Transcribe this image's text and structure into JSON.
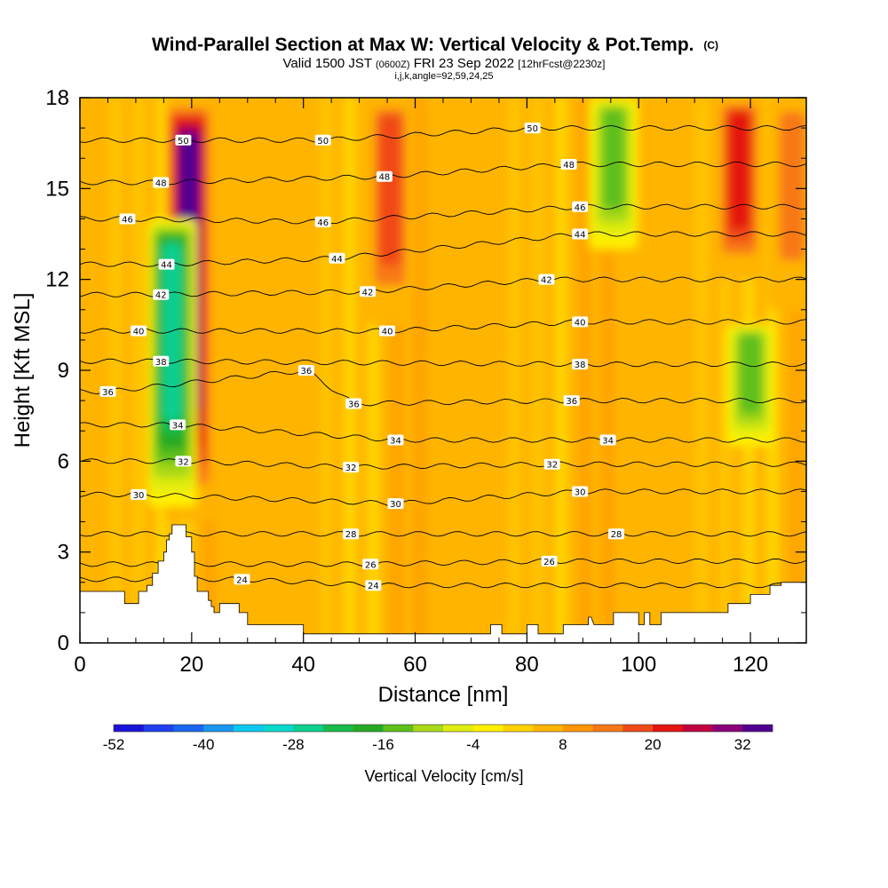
{
  "chart_data": {
    "type": "heatmap",
    "title": {
      "main": "Wind-Parallel Section at Max W: Vertical Velocity & Pot.Temp.",
      "copyright": "(C)"
    },
    "subtitle": {
      "valid": "Valid 1500 JST",
      "zulu": "(0600Z)",
      "date": "FRI 23 Sep 2022",
      "fcst": "[12hrFcst@2230z]"
    },
    "params": "i,j,k,angle=92,59,24,25",
    "xlabel": "Distance [nm]",
    "ylabel": "Height [Kft MSL]",
    "xlim": [
      0,
      130
    ],
    "ylim": [
      0,
      18
    ],
    "x_ticks": [
      0,
      20,
      40,
      60,
      80,
      100,
      120
    ],
    "y_ticks": [
      0,
      3,
      6,
      9,
      12,
      15,
      18
    ],
    "colorbar": {
      "label": "Vertical Velocity [cm/s]",
      "range": [
        -52,
        36
      ],
      "tick_labels": [
        "-52",
        "-40",
        "-28",
        "-16",
        "-4",
        "8",
        "20",
        "32"
      ],
      "colors": [
        "#1a13d8",
        "#1f3ff0",
        "#1b66f0",
        "#1a96f0",
        "#0cc8f0",
        "#0ad8cc",
        "#0ccf90",
        "#18bb4a",
        "#26aa24",
        "#5fbf1a",
        "#a8d818",
        "#e0ec10",
        "#fff000",
        "#ffd200",
        "#ffb400",
        "#ff9600",
        "#f87818",
        "#f04a18",
        "#e41410",
        "#c00040",
        "#8a0078",
        "#500090"
      ]
    },
    "velocity_features": [
      {
        "kind": "updraft",
        "x": 19.5,
        "y_range": [
          4.0,
          18.0
        ],
        "peak_cm_s": 32
      },
      {
        "kind": "updraft",
        "x": 55.5,
        "y_range": [
          10.5,
          18.0
        ],
        "peak_cm_s": 18
      },
      {
        "kind": "updraft",
        "x": 118.0,
        "y_range": [
          12.0,
          18.0
        ],
        "peak_cm_s": 22
      },
      {
        "kind": "updraft",
        "x": 127.5,
        "y_range": [
          11.0,
          18.0
        ],
        "peak_cm_s": 14
      },
      {
        "kind": "downdraft",
        "x": 16.5,
        "y_range": [
          4.5,
          14.0
        ],
        "peak_cm_s": -30
      },
      {
        "kind": "downdraft",
        "x": 95.5,
        "y_range": [
          13.0,
          18.0
        ],
        "peak_cm_s": -16
      },
      {
        "kind": "downdraft",
        "x": 120.0,
        "y_range": [
          6.5,
          10.5
        ],
        "peak_cm_s": -18
      }
    ],
    "theta_contours": [
      {
        "label": "24",
        "label_positions": [
          [
            29,
            2.1
          ],
          [
            52.5,
            1.9
          ]
        ]
      },
      {
        "label": "26",
        "label_positions": [
          [
            52,
            2.6
          ],
          [
            84,
            2.7
          ]
        ]
      },
      {
        "label": "28",
        "label_positions": [
          [
            48.5,
            3.6
          ],
          [
            96,
            3.6
          ]
        ]
      },
      {
        "label": "30",
        "label_positions": [
          [
            10.5,
            4.9
          ],
          [
            56.5,
            4.6
          ],
          [
            89.5,
            5.0
          ]
        ]
      },
      {
        "label": "32",
        "label_positions": [
          [
            18.5,
            6.0
          ],
          [
            48.5,
            5.8
          ],
          [
            84.5,
            5.9
          ]
        ]
      },
      {
        "label": "34",
        "label_positions": [
          [
            17.5,
            7.2
          ],
          [
            56.5,
            6.7
          ],
          [
            94.5,
            6.7
          ]
        ]
      },
      {
        "label": "36",
        "label_positions": [
          [
            5,
            8.3
          ],
          [
            40.5,
            9.0
          ],
          [
            49,
            7.9
          ],
          [
            88,
            8.0
          ]
        ]
      },
      {
        "label": "38",
        "label_positions": [
          [
            14.5,
            9.3
          ],
          [
            89.5,
            9.2
          ]
        ]
      },
      {
        "label": "40",
        "label_positions": [
          [
            10.5,
            10.3
          ],
          [
            55,
            10.3
          ],
          [
            89.5,
            10.6
          ]
        ]
      },
      {
        "label": "42",
        "label_positions": [
          [
            14.5,
            11.5
          ],
          [
            51.5,
            11.6
          ],
          [
            83.5,
            12.0
          ]
        ]
      },
      {
        "label": "44",
        "label_positions": [
          [
            15.5,
            12.5
          ],
          [
            46,
            12.7
          ],
          [
            89.5,
            13.5
          ]
        ]
      },
      {
        "label": "46",
        "label_positions": [
          [
            8.5,
            14.0
          ],
          [
            43.5,
            13.9
          ],
          [
            89.5,
            14.4
          ]
        ]
      },
      {
        "label": "48",
        "label_positions": [
          [
            14.5,
            15.2
          ],
          [
            54.5,
            15.4
          ],
          [
            87.5,
            15.8
          ]
        ]
      },
      {
        "label": "50",
        "label_positions": [
          [
            18.5,
            16.6
          ],
          [
            43.5,
            16.6
          ],
          [
            81,
            17.0
          ]
        ]
      }
    ],
    "terrain": [
      [
        0,
        1.7
      ],
      [
        8,
        1.7
      ],
      [
        8,
        1.3
      ],
      [
        10.5,
        1.3
      ],
      [
        10.5,
        1.7
      ],
      [
        12,
        1.7
      ],
      [
        12,
        1.9
      ],
      [
        13,
        1.9
      ],
      [
        13,
        2.3
      ],
      [
        14,
        2.3
      ],
      [
        14,
        2.7
      ],
      [
        15,
        2.7
      ],
      [
        15,
        3.0
      ],
      [
        15.5,
        3.0
      ],
      [
        15.5,
        3.4
      ],
      [
        16,
        3.4
      ],
      [
        16,
        3.6
      ],
      [
        16.5,
        3.6
      ],
      [
        16.5,
        3.9
      ],
      [
        19,
        3.9
      ],
      [
        19,
        3.5
      ],
      [
        20,
        3.5
      ],
      [
        20,
        3.0
      ],
      [
        20.5,
        3.0
      ],
      [
        20.5,
        2.2
      ],
      [
        21,
        2.2
      ],
      [
        21,
        1.7
      ],
      [
        23,
        1.7
      ],
      [
        23,
        1.4
      ],
      [
        23.5,
        1.4
      ],
      [
        23.5,
        1.2
      ],
      [
        24,
        1.2
      ],
      [
        24,
        1.0
      ],
      [
        25,
        1.0
      ],
      [
        25,
        1.3
      ],
      [
        28.5,
        1.3
      ],
      [
        28.5,
        1.0
      ],
      [
        30,
        1.0
      ],
      [
        30,
        0.6
      ],
      [
        40,
        0.6
      ],
      [
        40,
        0.3
      ],
      [
        73.5,
        0.3
      ],
      [
        73.5,
        0.6
      ],
      [
        75.5,
        0.6
      ],
      [
        75.5,
        0.3
      ],
      [
        80,
        0.3
      ],
      [
        80,
        0.6
      ],
      [
        82,
        0.6
      ],
      [
        82,
        0.3
      ],
      [
        86.5,
        0.3
      ],
      [
        86.5,
        0.6
      ],
      [
        91,
        0.6
      ],
      [
        91,
        0.85
      ],
      [
        91.5,
        0.85
      ],
      [
        92,
        0.6
      ],
      [
        95.5,
        0.6
      ],
      [
        95.5,
        1.0
      ],
      [
        100,
        1.0
      ],
      [
        100,
        0.6
      ],
      [
        101,
        0.6
      ],
      [
        101,
        1.0
      ],
      [
        102,
        1.0
      ],
      [
        102,
        0.6
      ],
      [
        104,
        0.6
      ],
      [
        104,
        1.0
      ],
      [
        116,
        1.0
      ],
      [
        116,
        1.3
      ],
      [
        120,
        1.3
      ],
      [
        120,
        1.6
      ],
      [
        123.5,
        1.6
      ],
      [
        123.5,
        1.9
      ],
      [
        125.5,
        1.9
      ],
      [
        125.5,
        2.0
      ],
      [
        130,
        2.0
      ]
    ]
  }
}
